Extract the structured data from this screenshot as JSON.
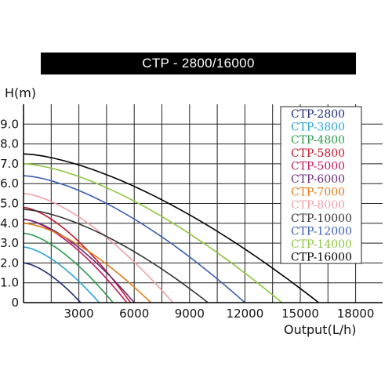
{
  "chart_data": {
    "type": "line",
    "title": "CTP - 2800/16000",
    "ylabel": "H(m)",
    "xlabel": "Output(L/h)",
    "xlim": [
      0,
      20000
    ],
    "ylim": [
      0,
      10
    ],
    "x_ticks": [
      3000,
      6000,
      9000,
      12000,
      15000,
      18000
    ],
    "x_tick_labels": [
      "3000",
      "6000",
      "9000",
      "12000",
      "15000",
      "18000"
    ],
    "y_ticks": [
      0,
      1,
      2,
      3,
      4,
      5,
      6,
      7,
      8,
      9
    ],
    "y_tick_labels": [
      "0",
      "1.0",
      "2.0",
      "3.0",
      "4.0",
      "5.0",
      "6.0",
      "7.0",
      "8.0",
      "9.0"
    ],
    "grid": true,
    "legend_position": "top-right",
    "series": [
      {
        "name": "CTP-2800",
        "color": "#1c2a78",
        "x": [
          0,
          3100
        ],
        "y": [
          2.0,
          0
        ],
        "curve": 1.0
      },
      {
        "name": "CTP-3800",
        "color": "#2ba3d8",
        "x": [
          0,
          4100
        ],
        "y": [
          2.8,
          0
        ],
        "curve": 1.0
      },
      {
        "name": "CTP-4800",
        "color": "#2a9b4a",
        "x": [
          0,
          4850
        ],
        "y": [
          3.5,
          0
        ],
        "curve": 1.0
      },
      {
        "name": "CTP-5800",
        "color": "#c4162a",
        "x": [
          0,
          5800
        ],
        "y": [
          4.8,
          0
        ],
        "curve": 1.0
      },
      {
        "name": "CTP-5000",
        "color": "#c2185b",
        "x": [
          0,
          5600
        ],
        "y": [
          4.2,
          0
        ],
        "curve": 1.0
      },
      {
        "name": "CTP-6000",
        "color": "#6a2a7a",
        "x": [
          0,
          6000
        ],
        "y": [
          4.2,
          0
        ],
        "curve": 1.0
      },
      {
        "name": "CTP-7000",
        "color": "#e07b1a",
        "x": [
          0,
          6900
        ],
        "y": [
          4.0,
          0
        ],
        "curve": 1.0
      },
      {
        "name": "CTP-8000",
        "color": "#f0a0a8",
        "x": [
          0,
          8100
        ],
        "y": [
          5.5,
          0
        ],
        "curve": 1.0
      },
      {
        "name": "CTP-10000",
        "color": "#333333",
        "x": [
          0,
          10000
        ],
        "y": [
          4.7,
          0
        ],
        "curve": 1.0
      },
      {
        "name": "CTP-12000",
        "color": "#3a5fb0",
        "x": [
          0,
          12000
        ],
        "y": [
          6.4,
          0
        ],
        "curve": 1.0
      },
      {
        "name": "CTP-14000",
        "color": "#8cc63e",
        "x": [
          0,
          14000
        ],
        "y": [
          7.0,
          0
        ],
        "curve": 1.0
      },
      {
        "name": "CTP-16000",
        "color": "#000000",
        "x": [
          0,
          16000
        ],
        "y": [
          7.5,
          0
        ],
        "curve": 1.0
      }
    ]
  }
}
